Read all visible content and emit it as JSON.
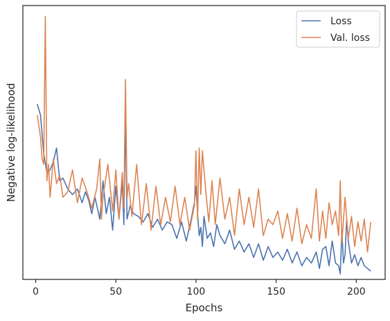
{
  "chart_data": {
    "type": "line",
    "xlabel": "Epochs",
    "ylabel": "Negative log-likelihood",
    "xlim": [
      -8,
      218
    ],
    "ylim": [
      0.0,
      1.0
    ],
    "xticks": [
      0,
      50,
      100,
      150,
      200
    ],
    "yticks": [],
    "grid": false,
    "legend_position": "top-right",
    "series": [
      {
        "name": "Loss",
        "color": "#4c72b0",
        "x": [
          1,
          3,
          5,
          7,
          9,
          11,
          13,
          15,
          17,
          20,
          23,
          26,
          29,
          31,
          33,
          35,
          37,
          40,
          42,
          44,
          46,
          48,
          50,
          52,
          54,
          55,
          56,
          57,
          59,
          61,
          64,
          67,
          70,
          73,
          76,
          79,
          82,
          85,
          88,
          91,
          94,
          97,
          99,
          100,
          101,
          102,
          103,
          104,
          105,
          107,
          109,
          111,
          113,
          115,
          118,
          121,
          124,
          127,
          130,
          133,
          136,
          139,
          142,
          145,
          148,
          151,
          154,
          157,
          160,
          163,
          166,
          169,
          172,
          175,
          177,
          179,
          181,
          183,
          185,
          187,
          189,
          190,
          191,
          192,
          193,
          194,
          195,
          197,
          199,
          201,
          203,
          205,
          207,
          209
        ],
        "y": [
          0.64,
          0.6,
          0.46,
          0.39,
          0.4,
          0.43,
          0.48,
          0.36,
          0.37,
          0.33,
          0.31,
          0.33,
          0.28,
          0.32,
          0.29,
          0.24,
          0.3,
          0.22,
          0.36,
          0.24,
          0.3,
          0.18,
          0.34,
          0.22,
          0.36,
          0.2,
          0.6,
          0.22,
          0.27,
          0.24,
          0.23,
          0.21,
          0.24,
          0.19,
          0.22,
          0.18,
          0.21,
          0.2,
          0.15,
          0.21,
          0.14,
          0.22,
          0.28,
          0.34,
          0.24,
          0.16,
          0.19,
          0.12,
          0.23,
          0.15,
          0.17,
          0.12,
          0.2,
          0.16,
          0.13,
          0.18,
          0.11,
          0.14,
          0.1,
          0.13,
          0.08,
          0.13,
          0.07,
          0.12,
          0.08,
          0.1,
          0.07,
          0.11,
          0.06,
          0.1,
          0.05,
          0.08,
          0.06,
          0.1,
          0.04,
          0.11,
          0.12,
          0.05,
          0.14,
          0.06,
          0.05,
          0.02,
          0.18,
          0.06,
          0.09,
          0.22,
          0.14,
          0.06,
          0.09,
          0.05,
          0.08,
          0.05,
          0.04,
          0.03
        ]
      },
      {
        "name": "Val. loss",
        "color": "#dd8452",
        "x": [
          1,
          3,
          4,
          5,
          6,
          7,
          8,
          9,
          11,
          13,
          15,
          17,
          20,
          23,
          26,
          29,
          32,
          35,
          38,
          40,
          41,
          42,
          45,
          48,
          50,
          52,
          54,
          55,
          56,
          57,
          58,
          60,
          63,
          66,
          69,
          72,
          75,
          78,
          81,
          84,
          87,
          90,
          93,
          96,
          99,
          100,
          101,
          102,
          103,
          104,
          106,
          108,
          110,
          112,
          115,
          118,
          121,
          124,
          127,
          130,
          133,
          136,
          139,
          142,
          145,
          148,
          151,
          154,
          157,
          160,
          163,
          166,
          169,
          172,
          175,
          177,
          179,
          181,
          183,
          185,
          187,
          189,
          190,
          191,
          193,
          195,
          197,
          199,
          201,
          203,
          205,
          207,
          209
        ],
        "y": [
          0.6,
          0.52,
          0.44,
          0.42,
          0.96,
          0.36,
          0.42,
          0.3,
          0.44,
          0.35,
          0.38,
          0.3,
          0.32,
          0.4,
          0.28,
          0.37,
          0.32,
          0.26,
          0.33,
          0.44,
          0.22,
          0.3,
          0.42,
          0.25,
          0.4,
          0.22,
          0.39,
          0.26,
          0.73,
          0.3,
          0.35,
          0.23,
          0.42,
          0.2,
          0.35,
          0.18,
          0.34,
          0.2,
          0.3,
          0.21,
          0.34,
          0.2,
          0.3,
          0.18,
          0.27,
          0.47,
          0.22,
          0.48,
          0.31,
          0.47,
          0.33,
          0.21,
          0.36,
          0.2,
          0.37,
          0.22,
          0.3,
          0.16,
          0.33,
          0.2,
          0.3,
          0.19,
          0.33,
          0.16,
          0.22,
          0.2,
          0.25,
          0.15,
          0.24,
          0.14,
          0.26,
          0.13,
          0.2,
          0.15,
          0.33,
          0.14,
          0.25,
          0.15,
          0.28,
          0.2,
          0.25,
          0.16,
          0.36,
          0.13,
          0.3,
          0.15,
          0.23,
          0.12,
          0.21,
          0.14,
          0.22,
          0.1,
          0.21
        ]
      }
    ]
  }
}
